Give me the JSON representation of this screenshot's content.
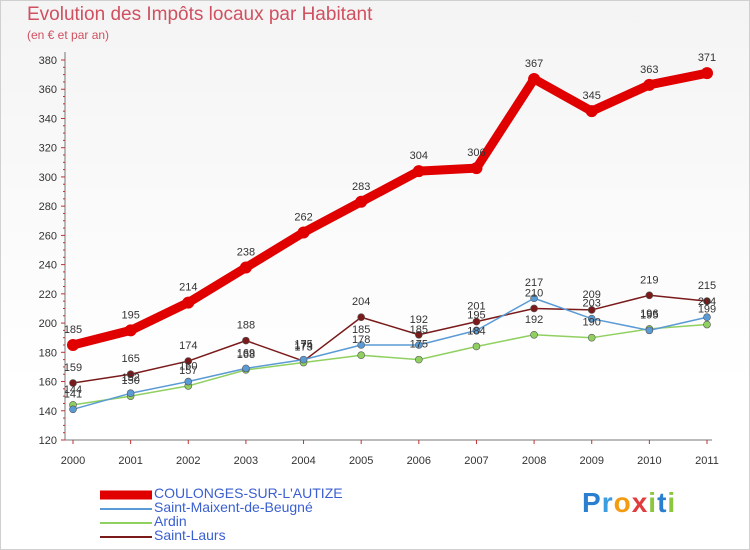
{
  "title": "Evolution des Impôts locaux par Habitant",
  "subtitle": "(en € et par an)",
  "logo": {
    "letters": [
      "P",
      "r",
      "o",
      "x",
      "i",
      "t",
      "i"
    ],
    "colors": [
      "#2a7fd0",
      "#3b9ee0",
      "#f39c12",
      "#e03c3c",
      "#8cc63f",
      "#2a7fd0",
      "#8cc63f"
    ]
  },
  "chart_data": {
    "type": "line",
    "x": [
      "2000",
      "2001",
      "2002",
      "2003",
      "2004",
      "2005",
      "2006",
      "2007",
      "2008",
      "2009",
      "2010",
      "2011"
    ],
    "ylim": [
      120,
      380
    ],
    "yticks": [
      120,
      140,
      160,
      180,
      200,
      220,
      240,
      260,
      280,
      300,
      320,
      340,
      360,
      380
    ],
    "grid": false,
    "legend_position": "bottom",
    "series": [
      {
        "name": "COULONGES-SUR-L'AUTIZE",
        "color": "#e00000",
        "values": [
          185,
          195,
          214,
          238,
          262,
          283,
          304,
          306,
          367,
          345,
          363,
          371
        ],
        "labels": [
          "185",
          "195",
          "214",
          "238",
          "262",
          "283",
          "304",
          "306",
          "367",
          "345",
          "363",
          "371"
        ]
      },
      {
        "name": "Saint-Maixent-de-Beugné",
        "color": "#5a9bd5",
        "values": [
          141,
          152,
          160,
          169,
          175,
          185,
          185,
          195,
          217,
          203,
          195,
          204
        ],
        "labels": [
          "141",
          "152",
          "160",
          "169",
          "175",
          "185",
          "185",
          "195",
          "217",
          "203",
          "195",
          "204"
        ]
      },
      {
        "name": "Ardin",
        "color": "#90d060",
        "values": [
          144,
          150,
          157,
          168,
          173,
          178,
          175,
          184,
          192,
          190,
          196,
          199
        ],
        "labels": [
          "144",
          "150",
          "157",
          "168",
          "173",
          "178",
          "175",
          "184",
          "192",
          "190",
          "196",
          "199"
        ]
      },
      {
        "name": "Saint-Laurs",
        "color": "#7a1a1a",
        "values": [
          159,
          165,
          174,
          188,
          174,
          204,
          192,
          201,
          210,
          209,
          219,
          215
        ],
        "labels": [
          "159",
          "165",
          "174",
          "188",
          "174",
          "204",
          "192",
          "201",
          "210",
          "209",
          "219",
          "215"
        ]
      }
    ]
  }
}
